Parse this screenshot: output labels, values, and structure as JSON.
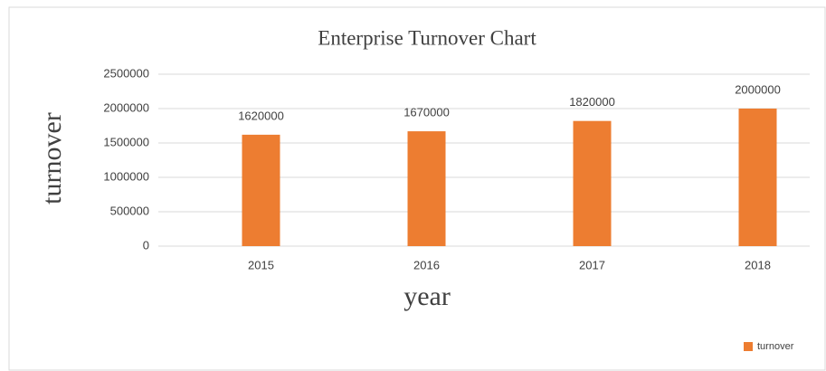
{
  "chart_data": {
    "type": "bar",
    "title": "Enterprise Turnover Chart",
    "x_label": "year",
    "y_label": "turnover",
    "categories": [
      "2015",
      "2016",
      "2017",
      "2018"
    ],
    "series": [
      {
        "name": "turnover",
        "color": "#ed7d31",
        "values": [
          1620000,
          1670000,
          1820000,
          2000000
        ]
      }
    ],
    "ylim": [
      0,
      2500000
    ],
    "yticks": [
      0,
      500000,
      1000000,
      1500000,
      2000000,
      2500000
    ],
    "grid": true,
    "legend": "bottom-right",
    "data_labels": true
  }
}
